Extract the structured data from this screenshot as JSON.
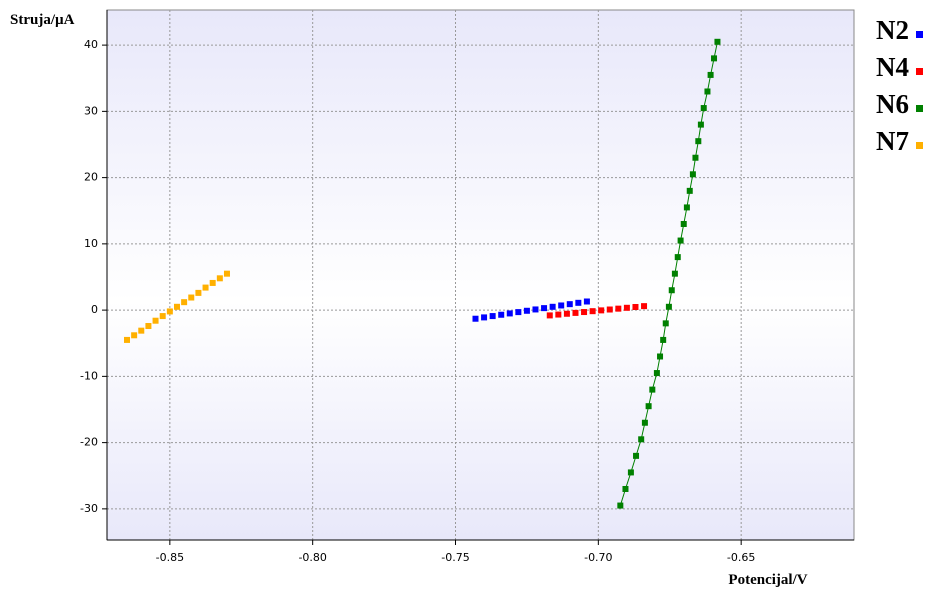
{
  "chart_data": {
    "type": "scatter",
    "y_label": "Struja/µA",
    "x_label": "Potencijal/V",
    "xlim": [
      -0.872,
      -0.6105
    ],
    "ylim": [
      -34.7,
      45.3
    ],
    "xticks": [
      -0.85,
      {
        "value": -0.8,
        "label": "-0.80"
      },
      -0.75,
      {
        "value": -0.7,
        "label": "-0.70"
      },
      -0.65
    ],
    "yticks": [
      -30,
      -20,
      -10,
      0,
      10,
      20,
      30,
      40
    ],
    "grid": true,
    "legend": "right",
    "series": [
      {
        "name": "N2",
        "color": "#0000ff",
        "x": [
          -0.743,
          -0.74,
          -0.737,
          -0.734,
          -0.731,
          -0.728,
          -0.725,
          -0.722,
          -0.719,
          -0.716,
          -0.713,
          -0.71,
          -0.707,
          -0.704
        ],
        "values": [
          -1.3,
          -1.1,
          -0.9,
          -0.7,
          -0.5,
          -0.3,
          -0.1,
          0.1,
          0.3,
          0.5,
          0.7,
          0.9,
          1.1,
          1.3
        ]
      },
      {
        "name": "N4",
        "color": "#ff0000",
        "x": [
          -0.717,
          -0.714,
          -0.711,
          -0.708,
          -0.705,
          -0.702,
          -0.699,
          -0.696,
          -0.693,
          -0.69,
          -0.687,
          -0.684
        ],
        "values": [
          -0.8,
          -0.67,
          -0.55,
          -0.42,
          -0.29,
          -0.16,
          -0.04,
          0.09,
          0.22,
          0.35,
          0.47,
          0.6
        ]
      },
      {
        "name": "N6",
        "color": "#008000",
        "line": true,
        "x": [
          -0.6923,
          -0.6905,
          -0.6886,
          -0.6868,
          -0.685,
          -0.6837,
          -0.6824,
          -0.6811,
          -0.6795,
          -0.6784,
          -0.6773,
          -0.6764,
          -0.6753,
          -0.6743,
          -0.6732,
          -0.6722,
          -0.6712,
          -0.6701,
          -0.669,
          -0.668,
          -0.6669,
          -0.666,
          -0.665,
          -0.6641,
          -0.6631,
          -0.6618,
          -0.6607,
          -0.6595,
          -0.6583
        ],
        "values": [
          -29.5,
          -27,
          -24.5,
          -22,
          -19.5,
          -17,
          -14.5,
          -12,
          -9.5,
          -7,
          -4.5,
          -2,
          0.5,
          3,
          5.5,
          8,
          10.5,
          13,
          15.5,
          18,
          20.5,
          23,
          25.5,
          28,
          30.5,
          33,
          35.5,
          38,
          40.5
        ]
      },
      {
        "name": "N7",
        "color": "#ffb000",
        "x": [
          -0.865,
          -0.8625,
          -0.86,
          -0.8575,
          -0.855,
          -0.8525,
          -0.85,
          -0.8475,
          -0.845,
          -0.8425,
          -0.84,
          -0.8375,
          -0.835,
          -0.8325,
          -0.83
        ],
        "values": [
          -4.5,
          -3.8,
          -3.1,
          -2.4,
          -1.6,
          -0.9,
          -0.2,
          0.5,
          1.2,
          1.9,
          2.6,
          3.4,
          4.1,
          4.8,
          5.5
        ]
      }
    ]
  }
}
